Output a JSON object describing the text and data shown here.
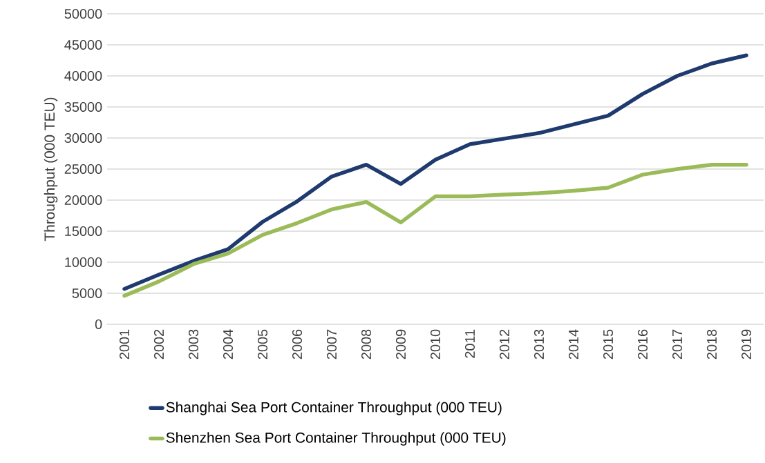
{
  "chart_data": {
    "type": "line",
    "ylabel": "Throughput (000 TEU)",
    "categories": [
      "2001",
      "2002",
      "2003",
      "2004",
      "2005",
      "2006",
      "2007",
      "2008",
      "2009",
      "2010",
      "2011",
      "2012",
      "2013",
      "2014",
      "2015",
      "2016",
      "2017",
      "2018",
      "2019"
    ],
    "series": [
      {
        "name": "Shanghai Sea Port Container Throughput (000 TEU)",
        "color": "#1f3a6e",
        "values": [
          5700,
          8000,
          10200,
          12100,
          16500,
          19800,
          23800,
          25700,
          22600,
          26500,
          29000,
          29900,
          30800,
          32200,
          33600,
          37100,
          40000,
          42000,
          43300
        ]
      },
      {
        "name": "Shenzhen Sea Port Container Throughput (000 TEU)",
        "color": "#9bbb59",
        "values": [
          4600,
          6900,
          9700,
          11400,
          14400,
          16300,
          18500,
          19700,
          16400,
          20600,
          20600,
          20900,
          21100,
          21500,
          22000,
          24100,
          25000,
          25700,
          25700
        ]
      }
    ],
    "ylim": [
      0,
      50000
    ],
    "yticks": [
      0,
      5000,
      10000,
      15000,
      20000,
      25000,
      30000,
      35000,
      40000,
      45000,
      50000
    ],
    "grid": "y",
    "legend": "bottom",
    "marker": "none",
    "line_style": "solid"
  }
}
